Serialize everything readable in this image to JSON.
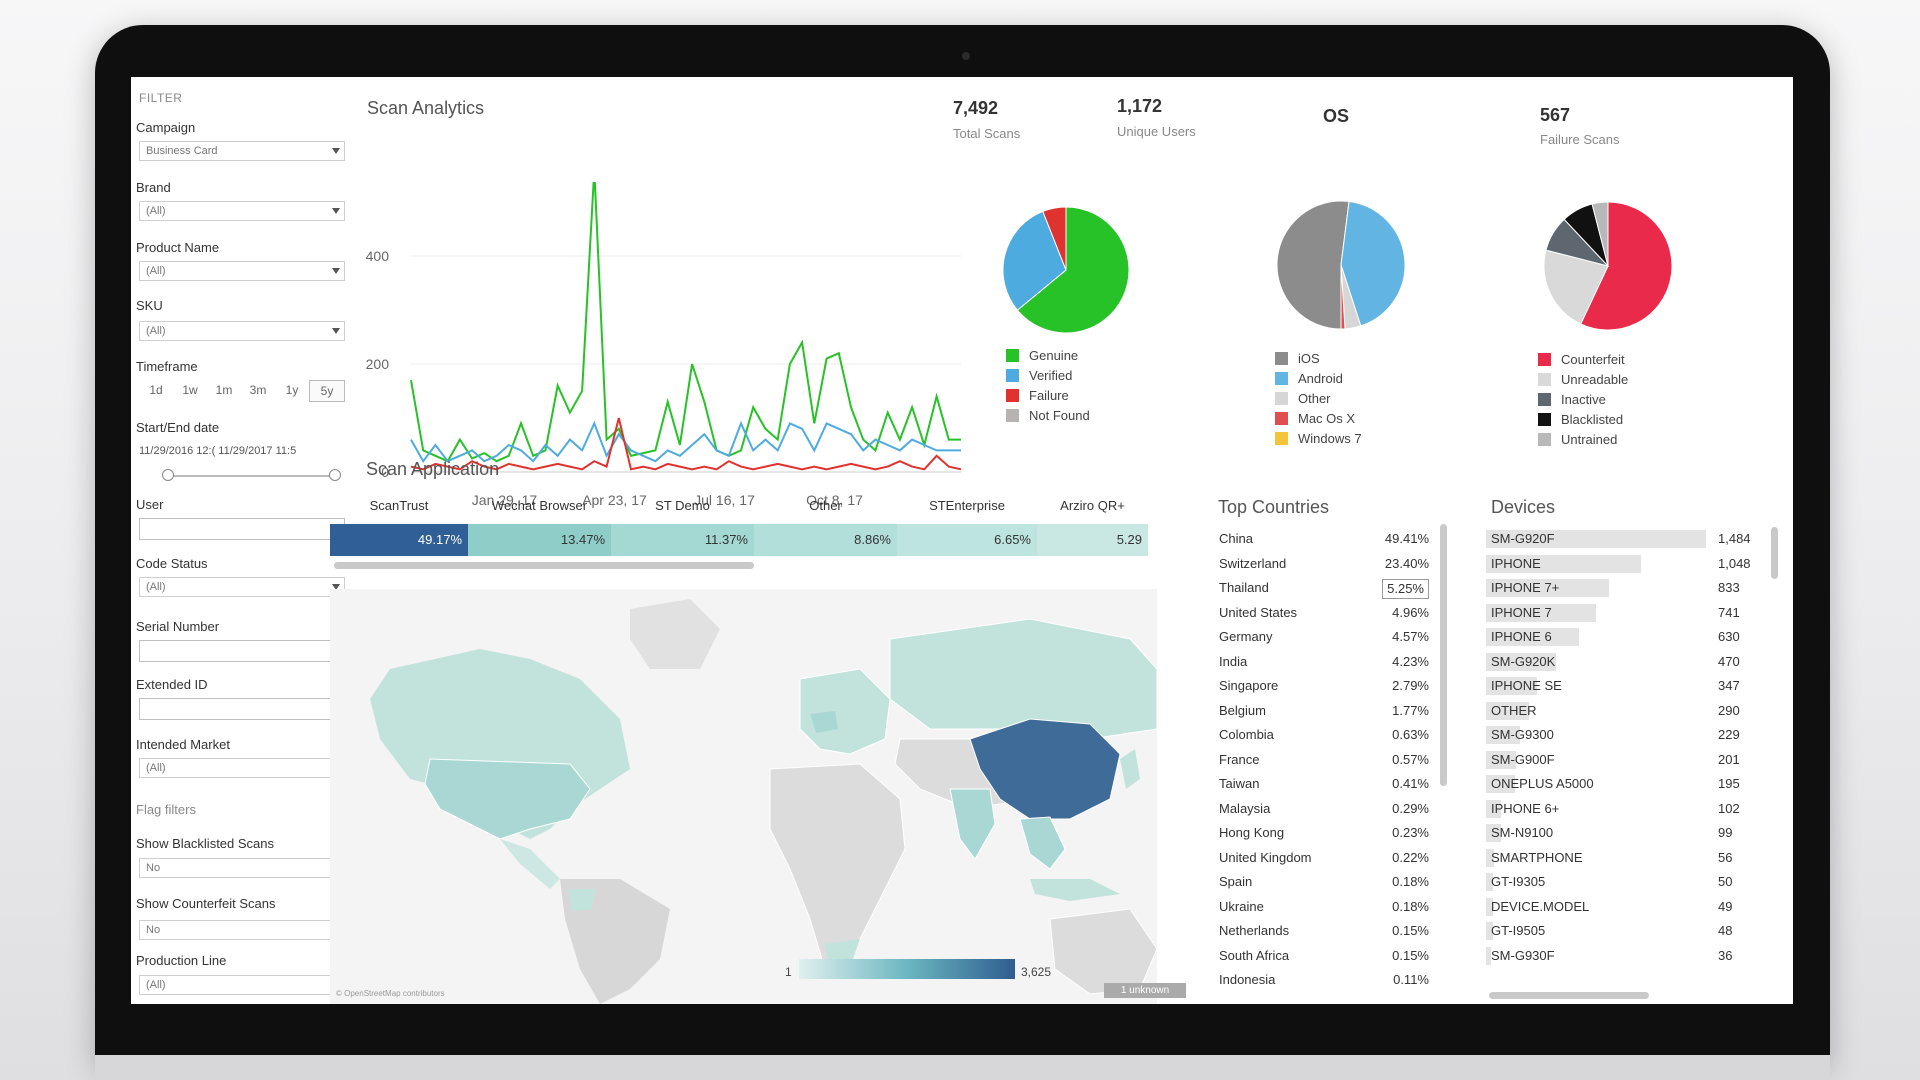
{
  "filter": {
    "title": "FILTER",
    "campaign": {
      "label": "Campaign",
      "value": "Business Card"
    },
    "brand": {
      "label": "Brand",
      "value": "(All)"
    },
    "product_name": {
      "label": "Product Name",
      "value": "(All)"
    },
    "sku": {
      "label": "SKU",
      "value": "(All)"
    },
    "timeframe": {
      "label": "Timeframe",
      "options": [
        "1d",
        "1w",
        "1m",
        "3m",
        "1y",
        "5y"
      ],
      "selected": "5y"
    },
    "start_end": {
      "label": "Start/End date",
      "value": "11/29/2016 12:( 11/29/2017 11:5"
    },
    "user": {
      "label": "User",
      "value": ""
    },
    "code_status": {
      "label": "Code Status",
      "value": "(All)"
    },
    "serial_number": {
      "label": "Serial Number",
      "value": ""
    },
    "extended_id": {
      "label": "Extended ID",
      "value": ""
    },
    "intended_market": {
      "label": "Intended Market",
      "value": "(All)"
    },
    "flag_filters": {
      "label": "Flag filters"
    },
    "show_blacklisted": {
      "label": "Show Blacklisted Scans",
      "value": "No"
    },
    "show_counterfeit": {
      "label": "Show Counterfeit Scans",
      "value": "No"
    },
    "production_line": {
      "label": "Production Line",
      "value": "(All)"
    }
  },
  "analytics": {
    "title": "Scan Analytics",
    "kpis": {
      "total_scans": {
        "value": "7,492",
        "label": "Total Scans"
      },
      "unique_users": {
        "value": "1,172",
        "label": "Unique Users"
      },
      "os": {
        "value": "OS"
      },
      "failure_scans": {
        "value": "567",
        "label": "Failure Scans"
      }
    }
  },
  "colors": {
    "genuine": "#27c227",
    "verified": "#4eabe0",
    "failure": "#e0322f",
    "not_found": "#b8b3b3",
    "ios": "#8c8c8c",
    "android": "#62b5e2",
    "os_other": "#d6d6d6",
    "mac": "#e04f4f",
    "windows": "#f2c53d",
    "counterfeit": "#ea2a4a",
    "unreadable": "#d9d9d9",
    "inactive": "#5e6770",
    "blacklisted": "#111111",
    "untrained": "#b8b8b8"
  },
  "chart_data": [
    {
      "type": "line",
      "x_tick_labels": [
        "Jan 29, 17",
        "Apr 23, 17",
        "Jul 16, 17",
        "Oct 8, 17"
      ],
      "ylim": [
        0,
        500
      ],
      "y_ticks": [
        0,
        200,
        400
      ],
      "grid": true,
      "series": [
        {
          "name": "Genuine",
          "values": [
            170,
            40,
            30,
            20,
            60,
            25,
            35,
            20,
            30,
            90,
            30,
            40,
            160,
            110,
            150,
            560,
            60,
            80,
            30,
            35,
            40,
            130,
            50,
            200,
            130,
            40,
            30,
            40,
            120,
            80,
            60,
            200,
            240,
            90,
            210,
            220,
            120,
            60,
            40,
            110,
            60,
            120,
            50,
            140,
            60,
            60
          ]
        },
        {
          "name": "Verified",
          "values": [
            60,
            20,
            50,
            20,
            30,
            40,
            20,
            30,
            50,
            40,
            20,
            50,
            30,
            60,
            40,
            90,
            30,
            70,
            40,
            30,
            20,
            40,
            30,
            50,
            70,
            40,
            30,
            90,
            40,
            60,
            40,
            90,
            80,
            40,
            90,
            80,
            70,
            40,
            60,
            50,
            40,
            60,
            50,
            40,
            40,
            40
          ]
        },
        {
          "name": "Failure",
          "values": [
            10,
            5,
            15,
            10,
            5,
            20,
            10,
            5,
            15,
            10,
            5,
            10,
            15,
            10,
            5,
            20,
            10,
            100,
            5,
            10,
            5,
            15,
            10,
            5,
            10,
            5,
            20,
            10,
            5,
            10,
            15,
            10,
            5,
            10,
            5,
            10,
            15,
            10,
            5,
            10,
            20,
            10,
            5,
            30,
            10,
            5
          ]
        }
      ]
    },
    {
      "type": "pie",
      "series": [
        {
          "name": "Genuine",
          "value": 64
        },
        {
          "name": "Verified",
          "value": 30
        },
        {
          "name": "Failure",
          "value": 6
        },
        {
          "name": "Not Found",
          "value": 0
        }
      ],
      "legend": [
        "Genuine",
        "Verified",
        "Failure",
        "Not Found"
      ]
    },
    {
      "type": "pie",
      "series": [
        {
          "name": "iOS",
          "value": 52
        },
        {
          "name": "Android",
          "value": 43
        },
        {
          "name": "Other",
          "value": 4
        },
        {
          "name": "Mac Os X",
          "value": 1
        },
        {
          "name": "Windows 7",
          "value": 0
        }
      ],
      "legend": [
        "iOS",
        "Android",
        "Other",
        "Mac Os X",
        "Windows 7"
      ]
    },
    {
      "type": "pie",
      "series": [
        {
          "name": "Counterfeit",
          "value": 57
        },
        {
          "name": "Unreadable",
          "value": 22
        },
        {
          "name": "Inactive",
          "value": 9
        },
        {
          "name": "Blacklisted",
          "value": 8
        },
        {
          "name": "Untrained",
          "value": 4
        }
      ],
      "legend": [
        "Counterfeit",
        "Unreadable",
        "Inactive",
        "Blacklisted",
        "Untrained"
      ]
    },
    {
      "type": "bar",
      "title": "Scan Application",
      "categories": [
        "ScanTrust",
        "Wechat Browser",
        "ST Demo",
        "Other",
        "STEnterprise",
        "Arziro QR+"
      ],
      "values": [
        49.17,
        13.47,
        11.37,
        8.86,
        6.65,
        5.29
      ],
      "labels": [
        "49.17%",
        "13.47%",
        "11.37%",
        "8.86%",
        "6.65%",
        "5.29"
      ]
    },
    {
      "type": "table",
      "title": "Top Countries",
      "rows": [
        [
          "China",
          "49.41%"
        ],
        [
          "Switzerland",
          "23.40%"
        ],
        [
          "Thailand",
          "5.25%"
        ],
        [
          "United States",
          "4.96%"
        ],
        [
          "Germany",
          "4.57%"
        ],
        [
          "India",
          "4.23%"
        ],
        [
          "Singapore",
          "2.79%"
        ],
        [
          "Belgium",
          "1.77%"
        ],
        [
          "Colombia",
          "0.63%"
        ],
        [
          "France",
          "0.57%"
        ],
        [
          "Taiwan",
          "0.41%"
        ],
        [
          "Malaysia",
          "0.29%"
        ],
        [
          "Hong Kong",
          "0.23%"
        ],
        [
          "United Kingdom",
          "0.22%"
        ],
        [
          "Spain",
          "0.18%"
        ],
        [
          "Ukraine",
          "0.18%"
        ],
        [
          "Netherlands",
          "0.15%"
        ],
        [
          "South Africa",
          "0.15%"
        ],
        [
          "Indonesia",
          "0.11%"
        ]
      ]
    },
    {
      "type": "table",
      "title": "Devices",
      "rows": [
        [
          "SM-G920F",
          "1,484"
        ],
        [
          "IPHONE",
          "1,048"
        ],
        [
          "IPHONE 7+",
          "833"
        ],
        [
          "IPHONE 7",
          "741"
        ],
        [
          "IPHONE 6",
          "630"
        ],
        [
          "SM-G920K",
          "470"
        ],
        [
          "IPHONE SE",
          "347"
        ],
        [
          "OTHER",
          "290"
        ],
        [
          "SM-G9300",
          "229"
        ],
        [
          "SM-G900F",
          "201"
        ],
        [
          "ONEPLUS A5000",
          "195"
        ],
        [
          "IPHONE 6+",
          "102"
        ],
        [
          "SM-N9100",
          "99"
        ],
        [
          "SMARTPHONE",
          "56"
        ],
        [
          "GT-I9305",
          "50"
        ],
        [
          "DEVICE.MODEL",
          "49"
        ],
        [
          "GT-I9505",
          "48"
        ],
        [
          "SM-G930F",
          "36"
        ]
      ],
      "values": [
        1484,
        1048,
        833,
        741,
        630,
        470,
        347,
        290,
        229,
        201,
        195,
        102,
        99,
        56,
        50,
        49,
        48,
        36
      ]
    }
  ],
  "map": {
    "scale_min": "1",
    "scale_max": "3,625",
    "unknown": "1 unknown",
    "attribution": "© OpenStreetMap contributors"
  }
}
